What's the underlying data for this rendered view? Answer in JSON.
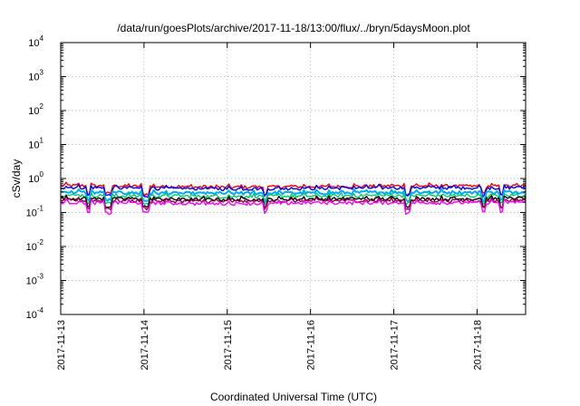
{
  "chart_data": {
    "type": "line",
    "title": "/data/run/goesPlots/archive/2017-11-18/13:00/flux/../bryn/5daysMoon.plot",
    "xlabel": "Coordinated Universal Time (UTC)",
    "ylabel": "cSv/day",
    "yscale": "log",
    "ylim": [
      0.0001,
      10000
    ],
    "xlim": [
      "2017-11-13T00:00",
      "2017-11-18T14:00"
    ],
    "grid": true,
    "xticks": [
      "2017-11-13",
      "2017-11-14",
      "2017-11-15",
      "2017-11-16",
      "2017-11-17",
      "2017-11-18"
    ],
    "yticks": [
      {
        "base": "10",
        "exp": "-4",
        "value": 0.0001
      },
      {
        "base": "10",
        "exp": "-3",
        "value": 0.001
      },
      {
        "base": "10",
        "exp": "-2",
        "value": 0.01
      },
      {
        "base": "10",
        "exp": "-1",
        "value": 0.1
      },
      {
        "base": "10",
        "exp": "0",
        "value": 1
      },
      {
        "base": "10",
        "exp": "1",
        "value": 10
      },
      {
        "base": "10",
        "exp": "2",
        "value": 100
      },
      {
        "base": "10",
        "exp": "3",
        "value": 1000
      },
      {
        "base": "10",
        "exp": "4",
        "value": 10000
      }
    ],
    "x": [
      "2017-11-13T00:00",
      "2017-11-13T12:00",
      "2017-11-14T00:00",
      "2017-11-14T12:00",
      "2017-11-15T00:00",
      "2017-11-15T12:00",
      "2017-11-16T00:00",
      "2017-11-16T12:00",
      "2017-11-17T00:00",
      "2017-11-17T12:00",
      "2017-11-18T00:00",
      "2017-11-18T14:00"
    ],
    "series": [
      {
        "color": "#ff0000",
        "values": [
          0.62,
          0.6,
          0.58,
          0.56,
          0.55,
          0.56,
          0.57,
          0.58,
          0.6,
          0.6,
          0.58,
          0.6
        ]
      },
      {
        "color": "#0000ff",
        "values": [
          0.55,
          0.53,
          0.51,
          0.5,
          0.49,
          0.5,
          0.51,
          0.52,
          0.53,
          0.53,
          0.52,
          0.54
        ]
      },
      {
        "color": "#00aaff",
        "values": [
          0.4,
          0.38,
          0.37,
          0.36,
          0.36,
          0.37,
          0.37,
          0.38,
          0.39,
          0.39,
          0.38,
          0.4
        ]
      },
      {
        "color": "#00cc66",
        "values": [
          0.32,
          0.31,
          0.3,
          0.3,
          0.29,
          0.3,
          0.3,
          0.31,
          0.31,
          0.31,
          0.3,
          0.32
        ]
      },
      {
        "color": "#000000",
        "values": [
          0.26,
          0.25,
          0.25,
          0.24,
          0.24,
          0.24,
          0.25,
          0.25,
          0.25,
          0.25,
          0.25,
          0.26
        ]
      },
      {
        "color": "#8b0040",
        "values": [
          0.23,
          0.22,
          0.22,
          0.21,
          0.21,
          0.21,
          0.22,
          0.22,
          0.22,
          0.22,
          0.22,
          0.23
        ]
      },
      {
        "color": "#ff00ff",
        "values": [
          0.2,
          0.19,
          0.19,
          0.18,
          0.18,
          0.18,
          0.19,
          0.19,
          0.19,
          0.19,
          0.19,
          0.2
        ]
      }
    ],
    "dips": [
      "2017-11-13T08:00",
      "2017-11-13T13:00",
      "2017-11-13T14:00",
      "2017-11-14T00:00",
      "2017-11-14T01:00",
      "2017-11-15T11:00",
      "2017-11-17T04:00",
      "2017-11-18T02:00",
      "2017-11-18T07:00"
    ]
  }
}
